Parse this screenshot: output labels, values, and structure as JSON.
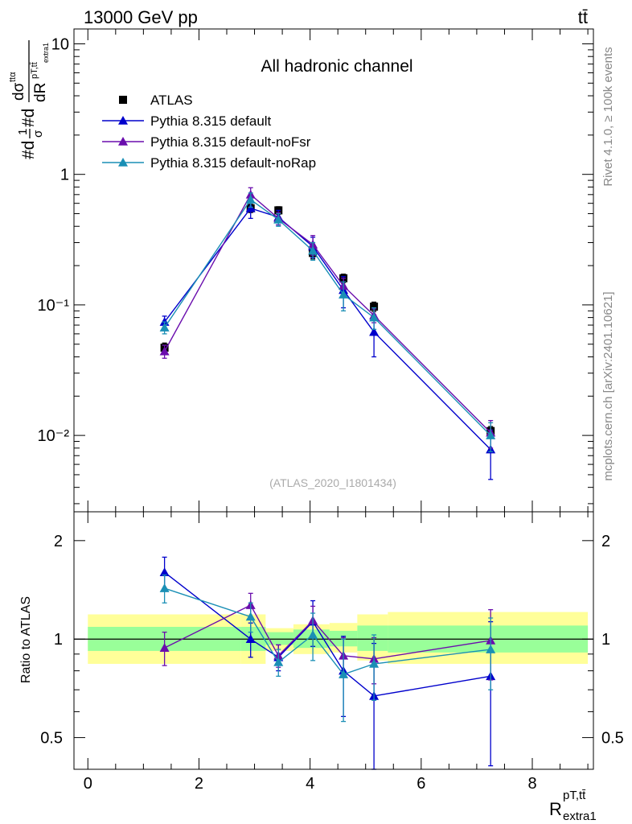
{
  "header": {
    "energy": "13000 GeV pp",
    "process": "tt̄"
  },
  "side_labels": {
    "rivet": "Rivet 4.1.0, ≥ 100k events",
    "mcplots": "mcplots.cern.ch [arXiv:2401.10621]"
  },
  "chart_data": [
    {
      "type": "scatter",
      "panel": "main",
      "title": "All hadronic channel",
      "analysis_label": "(ATLAS_2020_I1801434)",
      "ylabel_parts": {
        "prefix": "#d",
        "frac_top": "1",
        "frac_bot": "σ",
        "mid": "#d",
        "num": "dσ",
        "num_sup": "ttα",
        "den": "dR",
        "den_sup": "pT,tt̄",
        "den_sub": "extra1"
      },
      "yscale": "log",
      "ylim": [
        0.0026,
        13
      ],
      "xlim": [
        -0.25,
        9.1
      ],
      "ytick_labels": [
        "10",
        "1",
        "10⁻¹",
        "10⁻²"
      ],
      "ytick_values": [
        10,
        1,
        0.1,
        0.01
      ],
      "x": [
        1.38,
        2.93,
        3.43,
        4.05,
        4.6,
        5.15,
        7.25
      ],
      "series": [
        {
          "name": "ATLAS",
          "color": "#000000",
          "marker": "square",
          "values": [
            0.047,
            0.55,
            0.53,
            0.25,
            0.16,
            0.097,
            0.0108
          ],
          "err": [
            0.004,
            0.04,
            0.035,
            0.025,
            0.012,
            0.008,
            0.0009
          ]
        },
        {
          "name": "Pythia 8.315 default",
          "color": "#0000cc",
          "marker": "triangle",
          "values": [
            0.074,
            0.55,
            0.47,
            0.28,
            0.13,
            0.062,
            0.0078
          ],
          "err": [
            0.008,
            0.09,
            0.06,
            0.05,
            0.035,
            0.022,
            0.0032
          ]
        },
        {
          "name": "Pythia 8.315 default-noFsr",
          "color": "#6a0dad",
          "marker": "triangle",
          "values": [
            0.044,
            0.7,
            0.46,
            0.29,
            0.14,
            0.083,
            0.0105
          ],
          "err": [
            0.005,
            0.09,
            0.05,
            0.05,
            0.02,
            0.01,
            0.0025
          ]
        },
        {
          "name": "Pythia 8.315 default-noRap",
          "color": "#1a8fb5",
          "marker": "triangle",
          "values": [
            0.067,
            0.64,
            0.45,
            0.26,
            0.12,
            0.08,
            0.01
          ],
          "err": [
            0.007,
            0.08,
            0.05,
            0.04,
            0.03,
            0.015,
            0.0025
          ]
        }
      ]
    },
    {
      "type": "scatter",
      "panel": "ratio",
      "ylabel": "Ratio to ATLAS",
      "xlabel_parts": {
        "base": "R",
        "sup": "pT,tt̄",
        "sub": "extra1"
      },
      "yscale": "log",
      "ylim": [
        0.4,
        2.45
      ],
      "xlim": [
        -0.25,
        9.1
      ],
      "xtick_values": [
        0,
        2,
        4,
        6,
        8
      ],
      "xtick_labels": [
        "0",
        "2",
        "4",
        "6",
        "8"
      ],
      "ytick_values": [
        0.5,
        1,
        2
      ],
      "ytick_labels": [
        "0.5",
        "1",
        "2"
      ],
      "x": [
        1.38,
        2.93,
        3.43,
        4.05,
        4.6,
        5.15,
        7.25
      ],
      "bands": {
        "edges": [
          0,
          2.75,
          3.2,
          3.7,
          4.35,
          4.85,
          5.4,
          9.0
        ],
        "inner": [
          [
            0.92,
            1.09
          ],
          [
            0.92,
            1.09
          ],
          [
            0.96,
            1.05
          ],
          [
            0.94,
            1.07
          ],
          [
            0.95,
            1.06
          ],
          [
            0.92,
            1.1
          ],
          [
            0.91,
            1.1
          ]
        ],
        "outer": [
          [
            0.84,
            1.19
          ],
          [
            0.84,
            1.19
          ],
          [
            0.92,
            1.08
          ],
          [
            0.9,
            1.11
          ],
          [
            0.91,
            1.12
          ],
          [
            0.86,
            1.19
          ],
          [
            0.84,
            1.21
          ]
        ],
        "inner_color": "#99ff99",
        "outer_color": "#ffff99"
      },
      "series": [
        {
          "name": "Pythia 8.315 default",
          "color": "#0000cc",
          "values": [
            1.6,
            1.0,
            0.88,
            1.13,
            0.8,
            0.67,
            0.77
          ],
          "err": [
            0.18,
            0.12,
            0.08,
            0.18,
            0.22,
            0.3,
            0.36
          ]
        },
        {
          "name": "Pythia 8.315 default-noFsr",
          "color": "#6a0dad",
          "values": [
            0.94,
            1.27,
            0.89,
            1.14,
            0.89,
            0.87,
            0.99
          ],
          "err": [
            0.11,
            0.11,
            0.07,
            0.12,
            0.12,
            0.14,
            0.24
          ]
        },
        {
          "name": "Pythia 8.315 default-noRap",
          "color": "#1a8fb5",
          "values": [
            1.43,
            1.17,
            0.85,
            1.03,
            0.78,
            0.84,
            0.93
          ],
          "err": [
            0.14,
            0.12,
            0.08,
            0.17,
            0.22,
            0.19,
            0.23
          ]
        }
      ]
    }
  ]
}
